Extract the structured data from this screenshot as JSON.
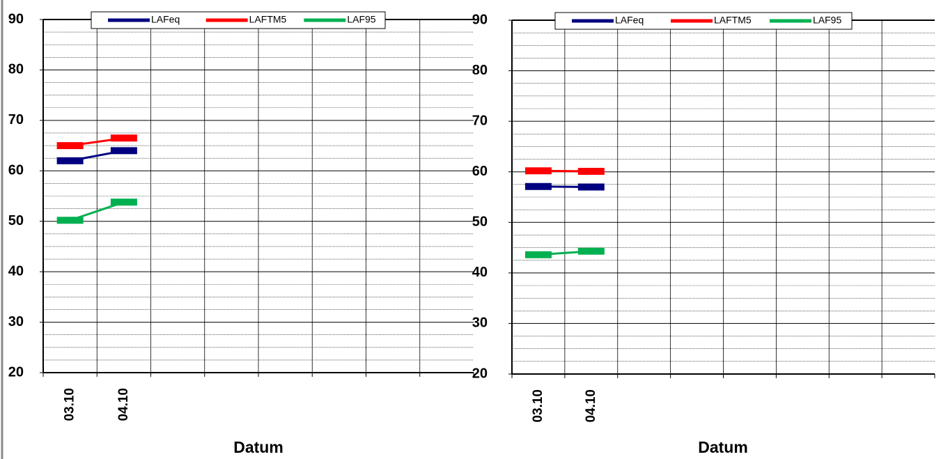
{
  "chart_data": [
    {
      "type": "line",
      "x_label": "Datum",
      "categories": [
        "03.10",
        "04.10",
        null,
        null,
        null,
        null,
        null,
        null
      ],
      "series": [
        {
          "name": "LAFeq",
          "color": "#000080",
          "values": [
            62,
            64,
            null,
            null,
            null,
            null,
            null,
            null
          ]
        },
        {
          "name": "LAFTM5",
          "color": "#ff0000",
          "values": [
            65,
            66.5,
            null,
            null,
            null,
            null,
            null,
            null
          ]
        },
        {
          "name": "LAF95",
          "color": "#00b050",
          "values": [
            50.2,
            53.8,
            null,
            null,
            null,
            null,
            null,
            null
          ]
        }
      ],
      "ylim": [
        20,
        90
      ],
      "yticks": [
        20,
        30,
        40,
        50,
        60,
        70,
        80,
        90
      ],
      "grid": true,
      "legend": "top"
    },
    {
      "type": "line",
      "x_label": "Datum",
      "categories": [
        "03.10",
        "04.10",
        null,
        null,
        null,
        null,
        null,
        null
      ],
      "series": [
        {
          "name": "LAFeq",
          "color": "#000080",
          "values": [
            57.1,
            57,
            null,
            null,
            null,
            null,
            null,
            null
          ]
        },
        {
          "name": "LAFTM5",
          "color": "#ff0000",
          "values": [
            60.2,
            60.1,
            null,
            null,
            null,
            null,
            null,
            null
          ]
        },
        {
          "name": "LAF95",
          "color": "#00b050",
          "values": [
            43.6,
            44.3,
            null,
            null,
            null,
            null,
            null,
            null
          ]
        }
      ],
      "ylim": [
        20,
        90
      ],
      "yticks": [
        20,
        30,
        40,
        50,
        60,
        70,
        80,
        90
      ],
      "grid": true,
      "legend": "top"
    }
  ]
}
